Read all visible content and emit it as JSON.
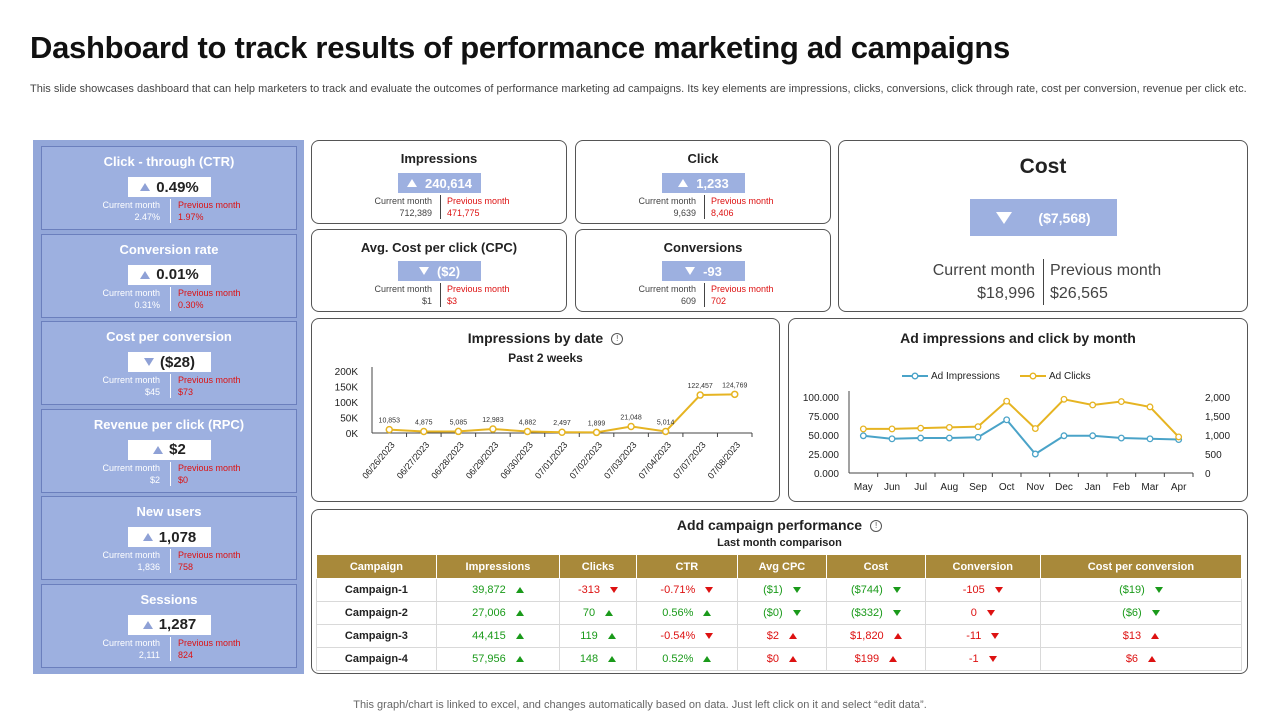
{
  "header": {
    "title": "Dashboard to track results of performance marketing ad campaigns",
    "subtitle": "This slide showcases dashboard that can help marketers to track and evaluate the outcomes of performance marketing ad campaigns. Its key elements are impressions, clicks, conversions, click through rate, cost per conversion, revenue per click etc."
  },
  "footer": "This graph/chart is linked to excel,  and changes automatically based on data. Just left click on it and select “edit data”.",
  "kpis": [
    {
      "title": "Click - through (CTR)",
      "value": "0.49%",
      "direction": "up",
      "current_label": "Current month",
      "current": "2.47%",
      "previous_label": "Previous month",
      "previous": "1.97%"
    },
    {
      "title": "Conversion rate",
      "value": "0.01%",
      "direction": "up",
      "current_label": "Current month",
      "current": "0.31%",
      "previous_label": "Previous month",
      "previous": "0.30%"
    },
    {
      "title": "Cost per conversion",
      "value": "($28)",
      "direction": "down",
      "current_label": "Current month",
      "current": "$45",
      "previous_label": "Previous month",
      "previous": "$73"
    },
    {
      "title": "Revenue per click (RPC)",
      "value": "$2",
      "direction": "up",
      "current_label": "Current month",
      "current": "$2",
      "previous_label": "Previous month",
      "previous": "$0"
    },
    {
      "title": "New users",
      "value": "1,078",
      "direction": "up",
      "current_label": "Current month",
      "current": "1,836",
      "previous_label": "Previous month",
      "previous": "758"
    },
    {
      "title": "Sessions",
      "value": "1,287",
      "direction": "up",
      "current_label": "Current month",
      "current": "2,111",
      "previous_label": "Previous month",
      "previous": "824"
    }
  ],
  "metrics": {
    "impressions": {
      "title": "Impressions",
      "value": "240,614",
      "current_label": "Current month",
      "current": "712,389",
      "previous_label": "Previous month",
      "previous": "471,775"
    },
    "click": {
      "title": "Click",
      "value": "1,233",
      "current_label": "Current month",
      "current": "9,639",
      "previous_label": "Previous month",
      "previous": "8,406"
    },
    "cpc": {
      "title": "Avg. Cost per click (CPC)",
      "value": "($2)",
      "current_label": "Current month",
      "current": "$1",
      "previous_label": "Previous month",
      "previous": "$3"
    },
    "conversions": {
      "title": "Conversions",
      "value": "-93",
      "current_label": "Current month",
      "current": "609",
      "previous_label": "Previous month",
      "previous": "702"
    },
    "cost": {
      "title": "Cost",
      "value": "($7,568)",
      "current_label": "Current month",
      "current": "$18,996",
      "previous_label": "Previous month",
      "previous": "$26,565"
    }
  },
  "impressions_chart": {
    "title": "Impressions by date",
    "subtitle": "Past 2 weeks",
    "info": "!"
  },
  "ad_chart": {
    "title": "Ad impressions and click by month"
  },
  "campaign": {
    "title": "Add campaign performance",
    "subtitle": "Last month comparison",
    "info": "!",
    "columns": [
      "Campaign",
      "Impressions",
      "Clicks",
      "CTR",
      "Avg CPC",
      "Cost",
      "Conversion",
      "Cost per conversion"
    ],
    "rows": [
      {
        "name": "Campaign-1",
        "cells": [
          [
            "39,872",
            "g",
            "gu"
          ],
          [
            "-313",
            "r",
            "rd"
          ],
          [
            "-0.71%",
            "r",
            "rd"
          ],
          [
            "($1)",
            "g",
            "gd"
          ],
          [
            "($744)",
            "g",
            "gd"
          ],
          [
            "-105",
            "r",
            "rd"
          ],
          [
            "($19)",
            "g",
            "gd"
          ]
        ]
      },
      {
        "name": "Campaign-2",
        "cells": [
          [
            "27,006",
            "g",
            "gu"
          ],
          [
            "70",
            "g",
            "gu"
          ],
          [
            "0.56%",
            "g",
            "gu"
          ],
          [
            "($0)",
            "g",
            "gd"
          ],
          [
            "($332)",
            "g",
            "gd"
          ],
          [
            "0",
            "r",
            "rd"
          ],
          [
            "($6)",
            "g",
            "gd"
          ]
        ]
      },
      {
        "name": "Campaign-3",
        "cells": [
          [
            "44,415",
            "g",
            "gu"
          ],
          [
            "119",
            "g",
            "gu"
          ],
          [
            "-0.54%",
            "r",
            "rd"
          ],
          [
            "$2",
            "r",
            "ru"
          ],
          [
            "$1,820",
            "r",
            "ru"
          ],
          [
            "-11",
            "r",
            "rd"
          ],
          [
            "$13",
            "r",
            "ru"
          ]
        ]
      },
      {
        "name": "Campaign-4",
        "cells": [
          [
            "57,956",
            "g",
            "gu"
          ],
          [
            "148",
            "g",
            "gu"
          ],
          [
            "0.52%",
            "g",
            "gu"
          ],
          [
            "$0",
            "r",
            "ru"
          ],
          [
            "$199",
            "r",
            "ru"
          ],
          [
            "-1",
            "r",
            "rd"
          ],
          [
            "$6",
            "r",
            "ru"
          ]
        ]
      }
    ]
  },
  "colors": {
    "panel": "#93a7d9",
    "accent_box": "#9db0e0",
    "header_gold": "#a8893a",
    "line_gold": "#e6b422",
    "line_blue": "#4aa3c8",
    "positive": "#1a9a1a",
    "negative": "#dd1111"
  },
  "chart_data": [
    {
      "type": "line",
      "title": "Impressions by date",
      "subtitle": "Past 2 weeks",
      "categories": [
        "06/26/2023",
        "06/27/2023",
        "06/28/2023",
        "06/29/2023",
        "06/30/2023",
        "07/01/2023",
        "07/02/2023",
        "07/03/2023",
        "07/04/2023",
        "07/07/2023",
        "07/08/2023"
      ],
      "series": [
        {
          "values": [
            10853,
            4875,
            5085,
            12983,
            4882,
            2497,
            1899,
            21048,
            5014,
            122457,
            124769
          ]
        }
      ],
      "data_labels": [
        "10,853",
        "4,875",
        "5,085",
        "12,983",
        "4,882",
        "2,497",
        "1,899",
        "21,048",
        "5,014",
        "122,457",
        "124,769"
      ],
      "ylim": [
        0,
        200000
      ],
      "yticks": [
        "200K",
        "150K",
        "100K",
        "50K",
        "0K"
      ],
      "ytick_values": [
        200000,
        150000,
        100000,
        50000,
        0
      ],
      "grid": false
    },
    {
      "type": "line",
      "title": "Ad impressions and click by month",
      "categories": [
        "May",
        "Jun",
        "Jul",
        "Aug",
        "Sep",
        "Oct",
        "Nov",
        "Dec",
        "Jan",
        "Feb",
        "Mar",
        "Apr"
      ],
      "series": [
        {
          "name": "Ad Impressions",
          "axis": "left",
          "values": [
            49000,
            45000,
            46000,
            46000,
            47000,
            70000,
            25000,
            49000,
            49000,
            46000,
            45000,
            44000
          ]
        },
        {
          "name": "Ad Clicks",
          "axis": "right",
          "values": [
            1160,
            1160,
            1180,
            1200,
            1220,
            1890,
            1170,
            1940,
            1790,
            1880,
            1740,
            950
          ]
        }
      ],
      "ylim_left": [
        0,
        100000
      ],
      "yticks_left": [
        "100.000",
        "75.000",
        "50.000",
        "25.000",
        "0.000"
      ],
      "ylim_right": [
        0,
        2000
      ],
      "yticks_right": [
        "2,000",
        "1,500",
        "1,000",
        "500",
        "0"
      ],
      "legend": "top",
      "grid": false
    }
  ]
}
